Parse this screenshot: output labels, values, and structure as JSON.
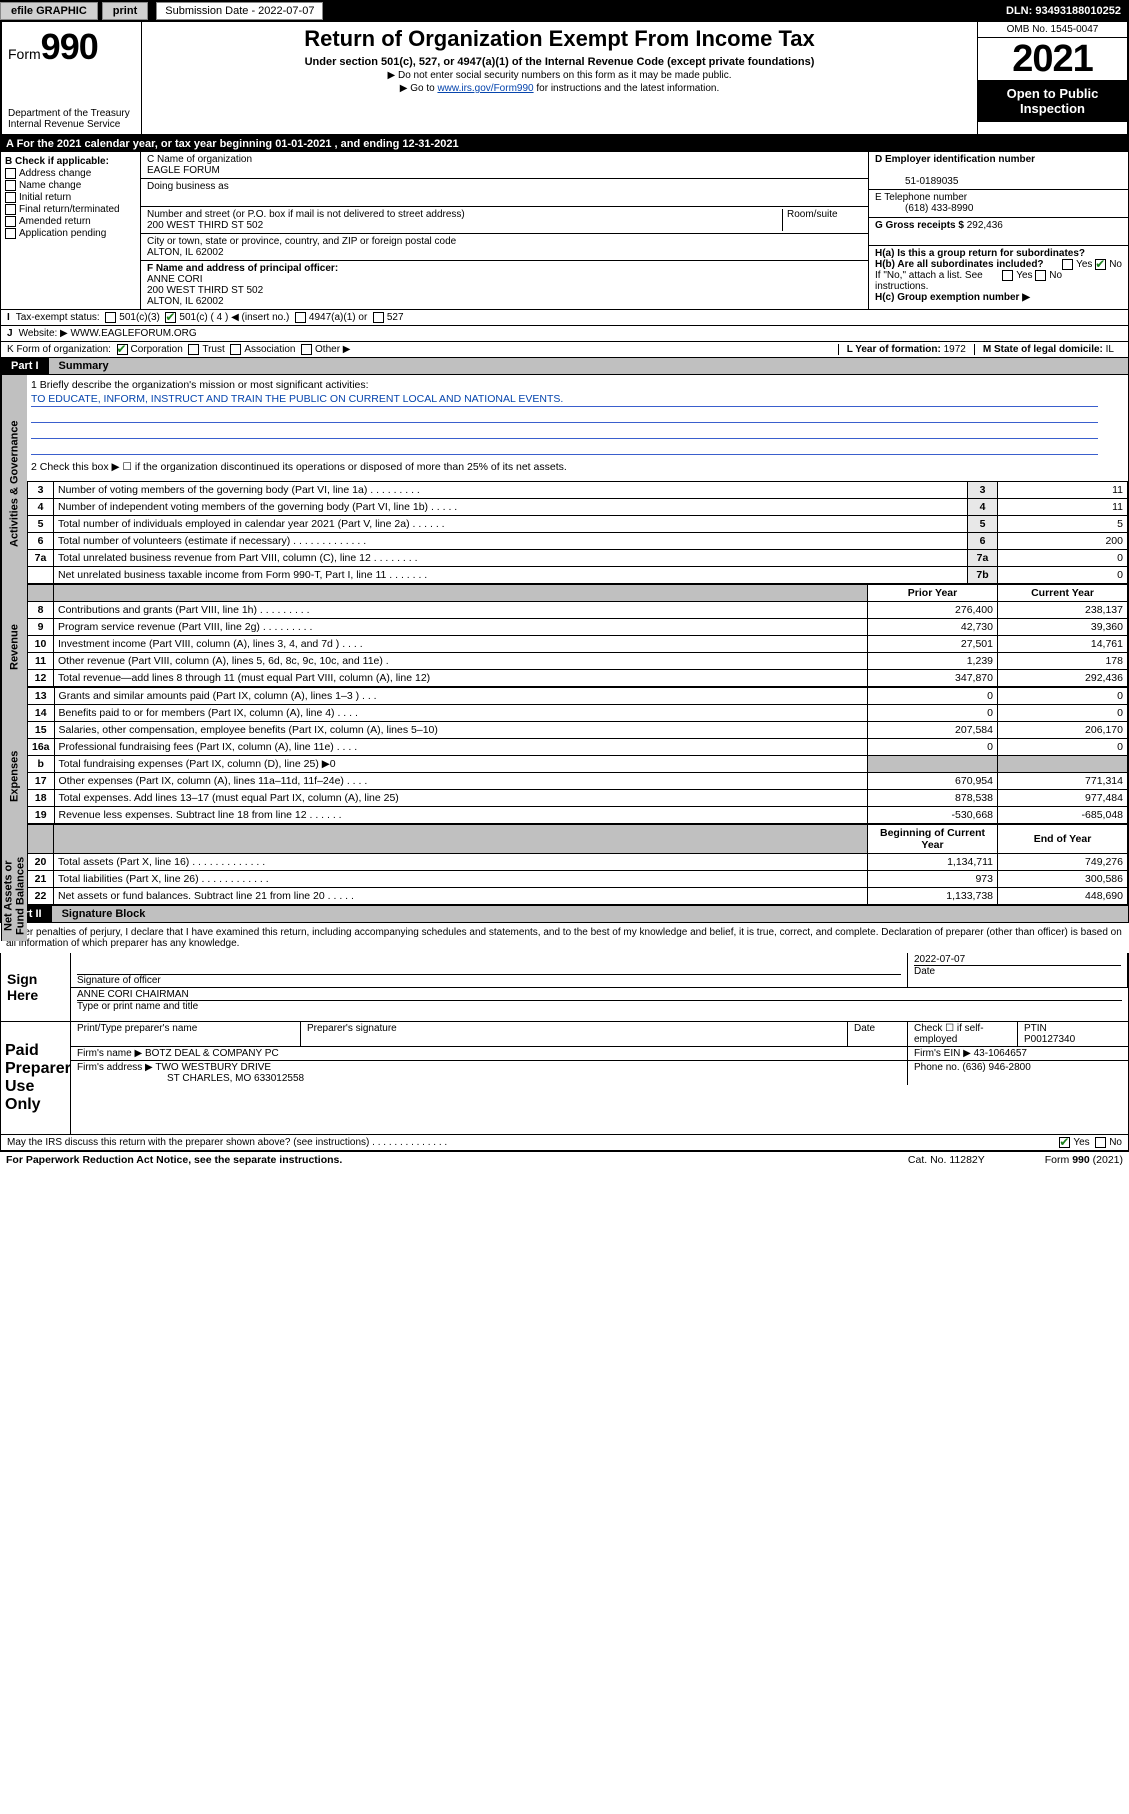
{
  "topbar": {
    "efile": "efile GRAPHIC",
    "print": "print",
    "sub_label": "Submission Date - 2022-07-07",
    "dln": "DLN: 93493188010252"
  },
  "header": {
    "form_prefix": "Form",
    "form_num": "990",
    "dept": "Department of the Treasury",
    "irs": "Internal Revenue Service",
    "title": "Return of Organization Exempt From Income Tax",
    "sub": "Under section 501(c), 527, or 4947(a)(1) of the Internal Revenue Code (except private foundations)",
    "note1": "▶ Do not enter social security numbers on this form as it may be made public.",
    "note2_pre": "▶ Go to ",
    "note2_link": "www.irs.gov/Form990",
    "note2_post": " for instructions and the latest information.",
    "omb": "OMB No. 1545-0047",
    "year": "2021",
    "otp": "Open to Public Inspection"
  },
  "taxyear": {
    "line": "A For the 2021 calendar year, or tax year beginning 01-01-2021   , and ending 12-31-2021"
  },
  "entity": {
    "B_label": "B Check if applicable:",
    "B_items": [
      "Address change",
      "Name change",
      "Initial return",
      "Final return/terminated",
      "Amended return",
      "Application pending"
    ],
    "C_name_lbl": "C Name of organization",
    "C_name": "EAGLE FORUM",
    "dba_lbl": "Doing business as",
    "dba": "",
    "street_lbl": "Number and street (or P.O. box if mail is not delivered to street address)",
    "room_lbl": "Room/suite",
    "street": "200 WEST THIRD ST 502",
    "city_lbl": "City or town, state or province, country, and ZIP or foreign postal code",
    "city": "ALTON, IL  62002",
    "D_lbl": "D Employer identification number",
    "D_val": "51-0189035",
    "E_lbl": "E Telephone number",
    "E_val": "(618) 433-8990",
    "G_lbl": "G Gross receipts $",
    "G_val": "292,436",
    "F_lbl": "F Name and address of principal officer:",
    "F_name": "ANNE CORI",
    "F_addr1": "200 WEST THIRD ST 502",
    "F_addr2": "ALTON, IL  62002",
    "Ha": "H(a)  Is this a group return for subordinates?",
    "Hb": "H(b)  Are all subordinates included?",
    "Hb_note": "If \"No,\" attach a list. See instructions.",
    "Hc": "H(c)  Group exemption number ▶",
    "yes": "Yes",
    "no": "No",
    "I_lbl": "Tax-exempt status:",
    "I_501c3": "501(c)(3)",
    "I_501c": "501(c) ( 4 ) ◀ (insert no.)",
    "I_4947": "4947(a)(1) or",
    "I_527": "527",
    "J_lbl": "Website: ▶",
    "J_val": "WWW.EAGLEFORUM.ORG",
    "K_lbl": "K Form of organization:",
    "K_opts": [
      "Corporation",
      "Trust",
      "Association",
      "Other ▶"
    ],
    "L_lbl": "L Year of formation:",
    "L_val": "1972",
    "M_lbl": "M State of legal domicile:",
    "M_val": "IL"
  },
  "part1": {
    "num": "Part I",
    "title": "Summary",
    "q1_lbl": "1  Briefly describe the organization's mission or most significant activities:",
    "q1_txt": "TO EDUCATE, INFORM, INSTRUCT AND TRAIN THE PUBLIC ON CURRENT LOCAL AND NATIONAL EVENTS.",
    "q2": "2  Check this box ▶ ☐  if the organization discontinued its operations or disposed of more than 25% of its net assets.",
    "gov_cap": "Activities & Governance",
    "rev_cap": "Revenue",
    "exp_cap": "Expenses",
    "net_cap": "Net Assets or Fund Balances",
    "lines_gov": [
      {
        "n": "3",
        "d": "Number of voting members of the governing body (Part VI, line 1a)  .   .   .   .   .   .   .   .   .",
        "b": "3",
        "v": "11"
      },
      {
        "n": "4",
        "d": "Number of independent voting members of the governing body (Part VI, line 1b)  .   .   .   .   .",
        "b": "4",
        "v": "11"
      },
      {
        "n": "5",
        "d": "Total number of individuals employed in calendar year 2021 (Part V, line 2a)  .   .   .   .   .   .",
        "b": "5",
        "v": "5"
      },
      {
        "n": "6",
        "d": "Total number of volunteers (estimate if necessary)  .   .   .   .   .   .   .   .   .   .   .   .   .",
        "b": "6",
        "v": "200"
      },
      {
        "n": "7a",
        "d": "Total unrelated business revenue from Part VIII, column (C), line 12  .   .   .   .   .   .   .   .",
        "b": "7a",
        "v": "0"
      },
      {
        "n": "",
        "d": "Net unrelated business taxable income from Form 990-T, Part I, line 11  .   .   .   .   .   .   .",
        "b": "7b",
        "v": "0"
      }
    ],
    "col_prior": "Prior Year",
    "col_curr": "Current Year",
    "lines_rev": [
      {
        "n": "8",
        "d": "Contributions and grants (Part VIII, line 1h)  .   .   .   .   .   .   .   .   .",
        "p": "276,400",
        "c": "238,137"
      },
      {
        "n": "9",
        "d": "Program service revenue (Part VIII, line 2g)  .   .   .   .   .   .   .   .   .",
        "p": "42,730",
        "c": "39,360"
      },
      {
        "n": "10",
        "d": "Investment income (Part VIII, column (A), lines 3, 4, and 7d )  .   .   .   .",
        "p": "27,501",
        "c": "14,761"
      },
      {
        "n": "11",
        "d": "Other revenue (Part VIII, column (A), lines 5, 6d, 8c, 9c, 10c, and 11e)   .",
        "p": "1,239",
        "c": "178"
      },
      {
        "n": "12",
        "d": "Total revenue—add lines 8 through 11 (must equal Part VIII, column (A), line 12)",
        "p": "347,870",
        "c": "292,436"
      }
    ],
    "lines_exp": [
      {
        "n": "13",
        "d": "Grants and similar amounts paid (Part IX, column (A), lines 1–3 )  .   .   .",
        "p": "0",
        "c": "0"
      },
      {
        "n": "14",
        "d": "Benefits paid to or for members (Part IX, column (A), line 4)  .   .   .   .",
        "p": "0",
        "c": "0"
      },
      {
        "n": "15",
        "d": "Salaries, other compensation, employee benefits (Part IX, column (A), lines 5–10)",
        "p": "207,584",
        "c": "206,170"
      },
      {
        "n": "16a",
        "d": "Professional fundraising fees (Part IX, column (A), line 11e)  .   .   .   .",
        "p": "0",
        "c": "0"
      },
      {
        "n": "b",
        "d": "Total fundraising expenses (Part IX, column (D), line 25) ▶0",
        "p": "",
        "c": "",
        "grey": true
      },
      {
        "n": "17",
        "d": "Other expenses (Part IX, column (A), lines 11a–11d, 11f–24e)  .   .   .   .",
        "p": "670,954",
        "c": "771,314"
      },
      {
        "n": "18",
        "d": "Total expenses. Add lines 13–17 (must equal Part IX, column (A), line 25)",
        "p": "878,538",
        "c": "977,484"
      },
      {
        "n": "19",
        "d": "Revenue less expenses. Subtract line 18 from line 12  .   .   .   .   .   .",
        "p": "-530,668",
        "c": "-685,048"
      }
    ],
    "col_boy": "Beginning of Current Year",
    "col_eoy": "End of Year",
    "lines_net": [
      {
        "n": "20",
        "d": "Total assets (Part X, line 16)  .   .   .   .   .   .   .   .   .   .   .   .   .",
        "p": "1,134,711",
        "c": "749,276"
      },
      {
        "n": "21",
        "d": "Total liabilities (Part X, line 26)  .   .   .   .   .   .   .   .   .   .   .   .",
        "p": "973",
        "c": "300,586"
      },
      {
        "n": "22",
        "d": "Net assets or fund balances. Subtract line 21 from line 20  .   .   .   .   .",
        "p": "1,133,738",
        "c": "448,690"
      }
    ]
  },
  "part2": {
    "num": "Part II",
    "title": "Signature Block",
    "penalty": "Under penalties of perjury, I declare that I have examined this return, including accompanying schedules and statements, and to the best of my knowledge and belief, it is true, correct, and complete. Declaration of preparer (other than officer) is based on all information of which preparer has any knowledge.",
    "sign_here": "Sign Here",
    "sig_officer": "Signature of officer",
    "sig_date": "Date",
    "sig_date_val": "2022-07-07",
    "sig_name": "ANNE CORI CHAIRMAN",
    "sig_name_lbl": "Type or print name and title",
    "paid": "Paid Preparer Use Only",
    "prep_name_lbl": "Print/Type preparer's name",
    "prep_sig_lbl": "Preparer's signature",
    "prep_date_lbl": "Date",
    "prep_check": "Check ☐ if self-employed",
    "ptin_lbl": "PTIN",
    "ptin": "P00127340",
    "firm_name_lbl": "Firm's name   ▶",
    "firm_name": "BOTZ DEAL & COMPANY PC",
    "firm_ein_lbl": "Firm's EIN ▶",
    "firm_ein": "43-1064657",
    "firm_addr_lbl": "Firm's address ▶",
    "firm_addr1": "TWO WESTBURY DRIVE",
    "firm_addr2": "ST CHARLES, MO  633012558",
    "phone_lbl": "Phone no.",
    "phone": "(636) 946-2800",
    "discuss": "May the IRS discuss this return with the preparer shown above? (see instructions)  .   .   .   .   .   .   .   .   .   .   .   .   .   .",
    "paperwork": "For Paperwork Reduction Act Notice, see the separate instructions.",
    "catno": "Cat. No. 11282Y",
    "formno": "Form 990 (2021)"
  },
  "colors": {
    "link": "#0645ad",
    "rule_blue": "#3a5fcd",
    "grey": "#c0c0c0",
    "check": "#1a7f1a"
  }
}
